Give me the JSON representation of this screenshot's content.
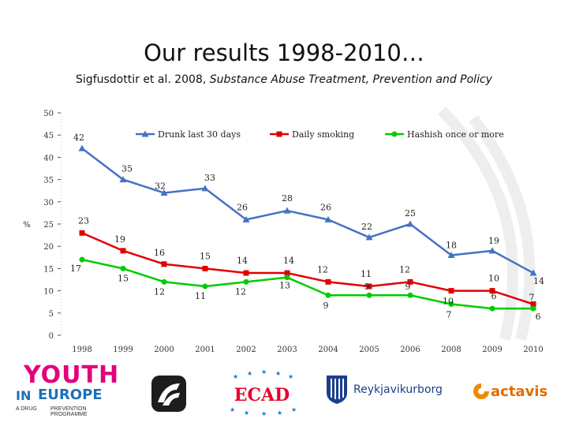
{
  "header": {
    "title": "Our results 1998-2010…",
    "subtitle_author": "Sigfusdottir et al. 2008, ",
    "subtitle_journal": "Substance Abuse Treatment, Prevention and Policy"
  },
  "chart_data": {
    "type": "line",
    "ylabel": "%",
    "ylim": [
      0,
      50
    ],
    "yticks": [
      0,
      5,
      10,
      15,
      20,
      25,
      30,
      35,
      40,
      45,
      50
    ],
    "categories": [
      "1998",
      "1999",
      "2000",
      "2001",
      "2002",
      "2003",
      "2004",
      "2005",
      "2006",
      "2008",
      "2009",
      "2010"
    ],
    "legend_position": "top",
    "series": [
      {
        "name": "Drunk last 30 days",
        "color": "#4472c4",
        "marker": "triangle",
        "values": [
          42,
          35,
          32,
          33,
          26,
          28,
          26,
          22,
          25,
          18,
          19,
          14
        ],
        "labels": [
          "42",
          "35",
          "32",
          "33",
          "26",
          "28",
          "26",
          "22",
          "25",
          "18",
          "19",
          "14"
        ]
      },
      {
        "name": "Daily smoking",
        "color": "#e00000",
        "marker": "square",
        "values": [
          23,
          19,
          16,
          15,
          14,
          14,
          12,
          11,
          12,
          10,
          10,
          7
        ],
        "labels": [
          "23",
          "19",
          "16",
          "15",
          "14",
          "14",
          "12",
          "11",
          "12",
          "10",
          "10",
          "7"
        ]
      },
      {
        "name": "Hashish once or more",
        "color": "#00cc00",
        "marker": "circle",
        "values": [
          17,
          15,
          12,
          11,
          12,
          13,
          9,
          9,
          9,
          7,
          6,
          6
        ],
        "labels": [
          "17",
          "15",
          "12",
          "11",
          "12",
          "13",
          "9",
          "9",
          "9",
          "7",
          "6",
          "6"
        ]
      }
    ]
  },
  "logos": {
    "youth_top": "YOUTH",
    "youth_in": "IN",
    "youth_europe": "EUROPE",
    "youth_sub1": "A DRUG",
    "youth_sub2": "PREVENTION PROGRAMME",
    "ecad": "ECAD",
    "reykjavik": "Reykjavikurborg",
    "actavis": "actavis"
  }
}
